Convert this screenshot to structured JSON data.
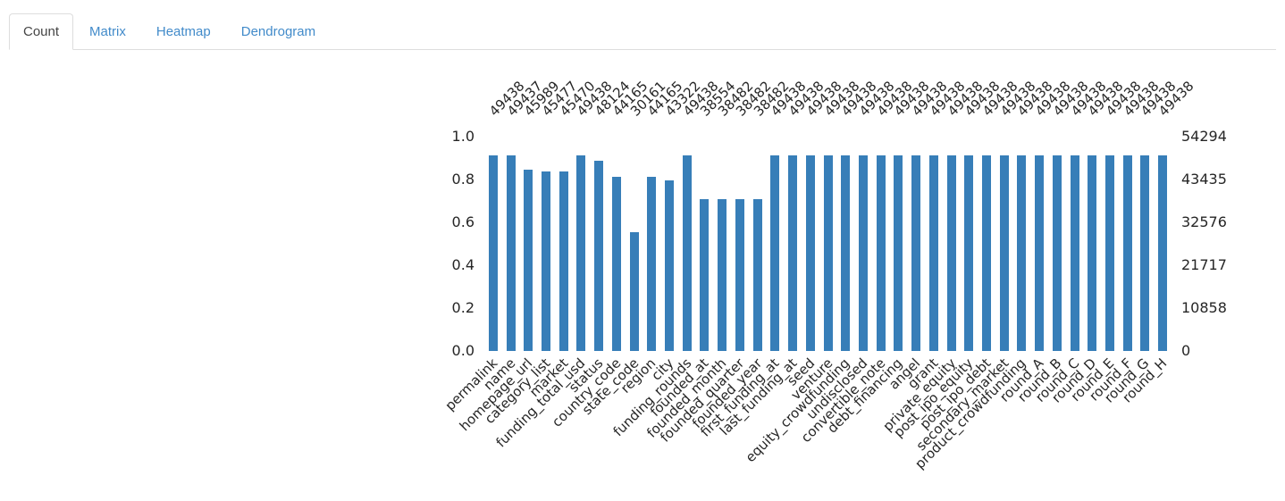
{
  "tabs": {
    "items": [
      {
        "label": "Count",
        "active": true
      },
      {
        "label": "Matrix",
        "active": false
      },
      {
        "label": "Heatmap",
        "active": false
      },
      {
        "label": "Dendrogram",
        "active": false
      }
    ]
  },
  "chart_data": {
    "type": "bar",
    "title": "",
    "xlabel": "",
    "ylabel": "",
    "categories": [
      "permalink",
      "name",
      "homepage_url",
      "category_list",
      "market",
      "funding_total_usd",
      "status",
      "country_code",
      "state_code",
      "region",
      "city",
      "funding_rounds",
      "founded_at",
      "founded_month",
      "founded_quarter",
      "founded_year",
      "first_funding_at",
      "last_funding_at",
      "seed",
      "venture",
      "equity_crowdfunding",
      "undisclosed",
      "convertible_note",
      "debt_financing",
      "angel",
      "grant",
      "private_equity",
      "post_ipo_equity",
      "post_ipo_debt",
      "secondary_market",
      "product_crowdfunding",
      "round_A",
      "round_B",
      "round_C",
      "round_D",
      "round_E",
      "round_F",
      "round_G",
      "round_H"
    ],
    "values": [
      49438,
      49437,
      45989,
      45477,
      45470,
      49438,
      48124,
      44165,
      30161,
      44165,
      43322,
      49438,
      38554,
      38482,
      38482,
      38482,
      49438,
      49438,
      49438,
      49438,
      49438,
      49438,
      49438,
      49438,
      49438,
      49438,
      49438,
      49438,
      49438,
      49438,
      49438,
      49438,
      49438,
      49438,
      49438,
      49438,
      49438,
      49438,
      49438
    ],
    "bar_value_labels_shown": true,
    "left_axis_ticks": [
      "0.0",
      "0.2",
      "0.4",
      "0.6",
      "0.8",
      "1.0"
    ],
    "right_axis_ticks": [
      "0",
      "10858",
      "21717",
      "32576",
      "43435",
      "54294"
    ],
    "ylim": [
      0,
      1
    ],
    "total_rows": 54294,
    "bar_color": "#377eb8",
    "grid": false,
    "legend": "none",
    "x_tick_rotation_deg": 45
  },
  "colors": {
    "tab_link": "#428bca",
    "tab_active_text": "#454545",
    "tab_border": "#dddddd",
    "bar": "#377eb8",
    "chart_text": "#262626"
  }
}
